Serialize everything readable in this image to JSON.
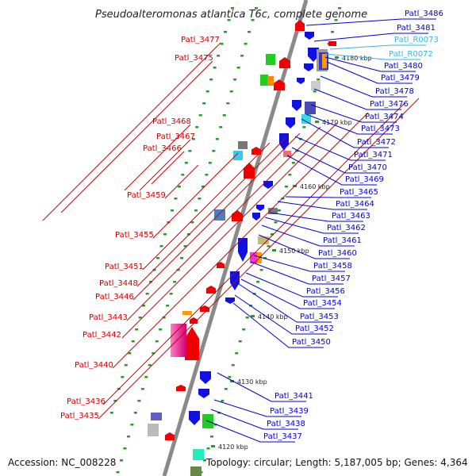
{
  "title": "Pseudoalteromonas atlantica T6c, complete genome",
  "footer": {
    "accession": "Accession: NC_008228",
    "topology": "Topology: circular; Length: 5,187,005 bp; Genes: 4,364"
  },
  "colors": {
    "forward_label": "#cc0000",
    "reverse_label": "#0000cc",
    "rna_label": "#33b6e6",
    "backbone": "#8a8a8a",
    "dots": "#2a9a2a"
  },
  "ticks": [
    "4180 kbp",
    "4170 kbp",
    "4160 kbp",
    "4150 kbp",
    "4140 kbp",
    "4130 kbp",
    "4120 kbp"
  ],
  "labels_left": [
    "Patl_3477",
    "Patl_3475",
    "Patl_3468",
    "Patl_3467",
    "Patl_3466",
    "Patl_3459",
    "Patl_3455",
    "Patl_3451",
    "Patl_3448",
    "Patl_3446",
    "Patl_3443",
    "Patl_3442",
    "Patl_3440",
    "Patl_3436",
    "Patl_3435"
  ],
  "labels_right": [
    "Patl_3486",
    "Patl_3481",
    "Patl_R0073",
    "Patl_R0072",
    "Patl_3480",
    "Patl_3479",
    "Patl_3478",
    "Patl_3476",
    "Patl_3474",
    "Patl_3473",
    "Patl_3472",
    "Patl_3471",
    "Patl_3470",
    "Patl_3469",
    "Patl_3465",
    "Patl_3464",
    "Patl_3463",
    "Patl_3462",
    "Patl_3461",
    "Patl_3460",
    "Patl_3458",
    "Patl_3457",
    "Patl_3456",
    "Patl_3454",
    "Patl_3453",
    "Patl_3452",
    "Patl_3450",
    "Patl_3441",
    "Patl_3439",
    "Patl_3438",
    "Patl_3437"
  ],
  "rna_labels": [
    "Patl_R0073",
    "Patl_R0072"
  ]
}
